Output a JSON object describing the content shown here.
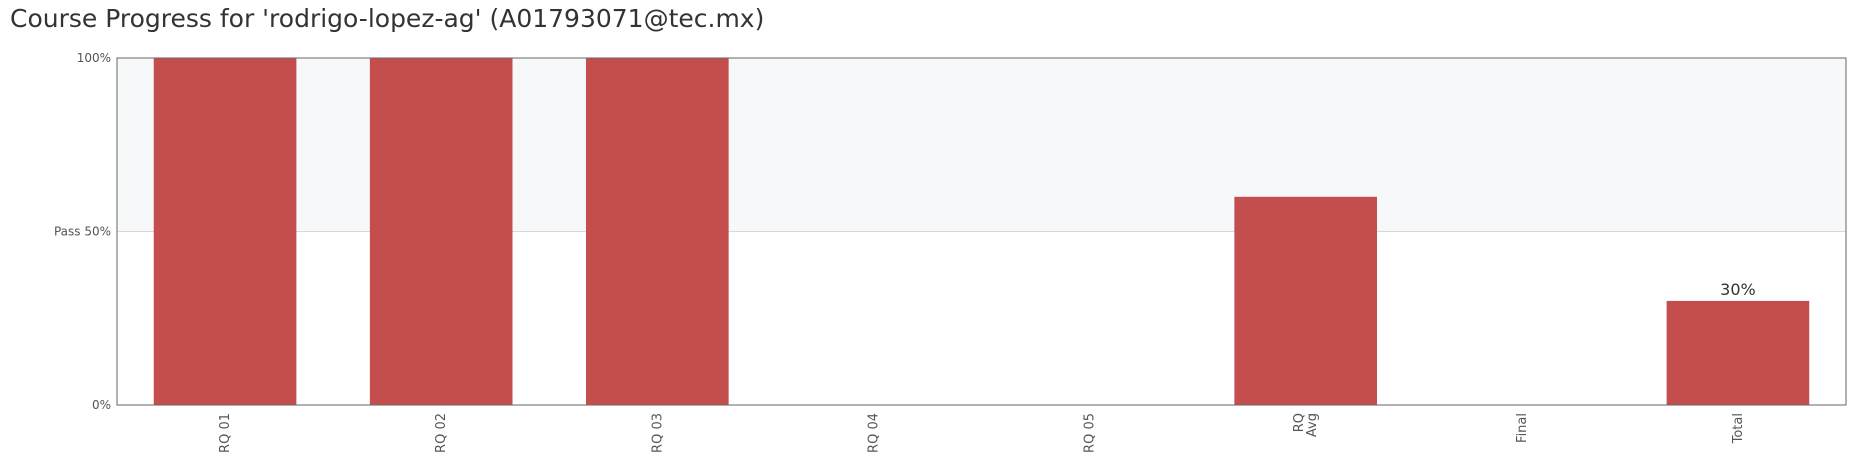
{
  "title": "Course Progress for 'rodrigo-lopez-ag' (A01793071@tec.mx)",
  "chart_data": {
    "type": "bar",
    "categories": [
      [
        "RQ 01"
      ],
      [
        "RQ 02"
      ],
      [
        "RQ 03"
      ],
      [
        "RQ 04"
      ],
      [
        "RQ 05"
      ],
      [
        "RQ",
        "Avg"
      ],
      [
        "Final"
      ],
      [
        "Total"
      ]
    ],
    "values": [
      100,
      100,
      100,
      0,
      0,
      60,
      0,
      30
    ],
    "data_labels": [
      "",
      "",
      "",
      "",
      "",
      "",
      "",
      "30%"
    ],
    "ylim": [
      0,
      100
    ],
    "yticks": [
      {
        "value": 0,
        "label": "0%"
      },
      {
        "value": 50,
        "label": "Pass 50%"
      },
      {
        "value": 100,
        "label": "100%"
      }
    ],
    "pass_threshold": 50,
    "grid": false,
    "colors": {
      "bar": "#c44e4e",
      "pass_band": "#f7f8fa",
      "axis": "#666666",
      "pass_line": "#d5d8dc"
    }
  }
}
